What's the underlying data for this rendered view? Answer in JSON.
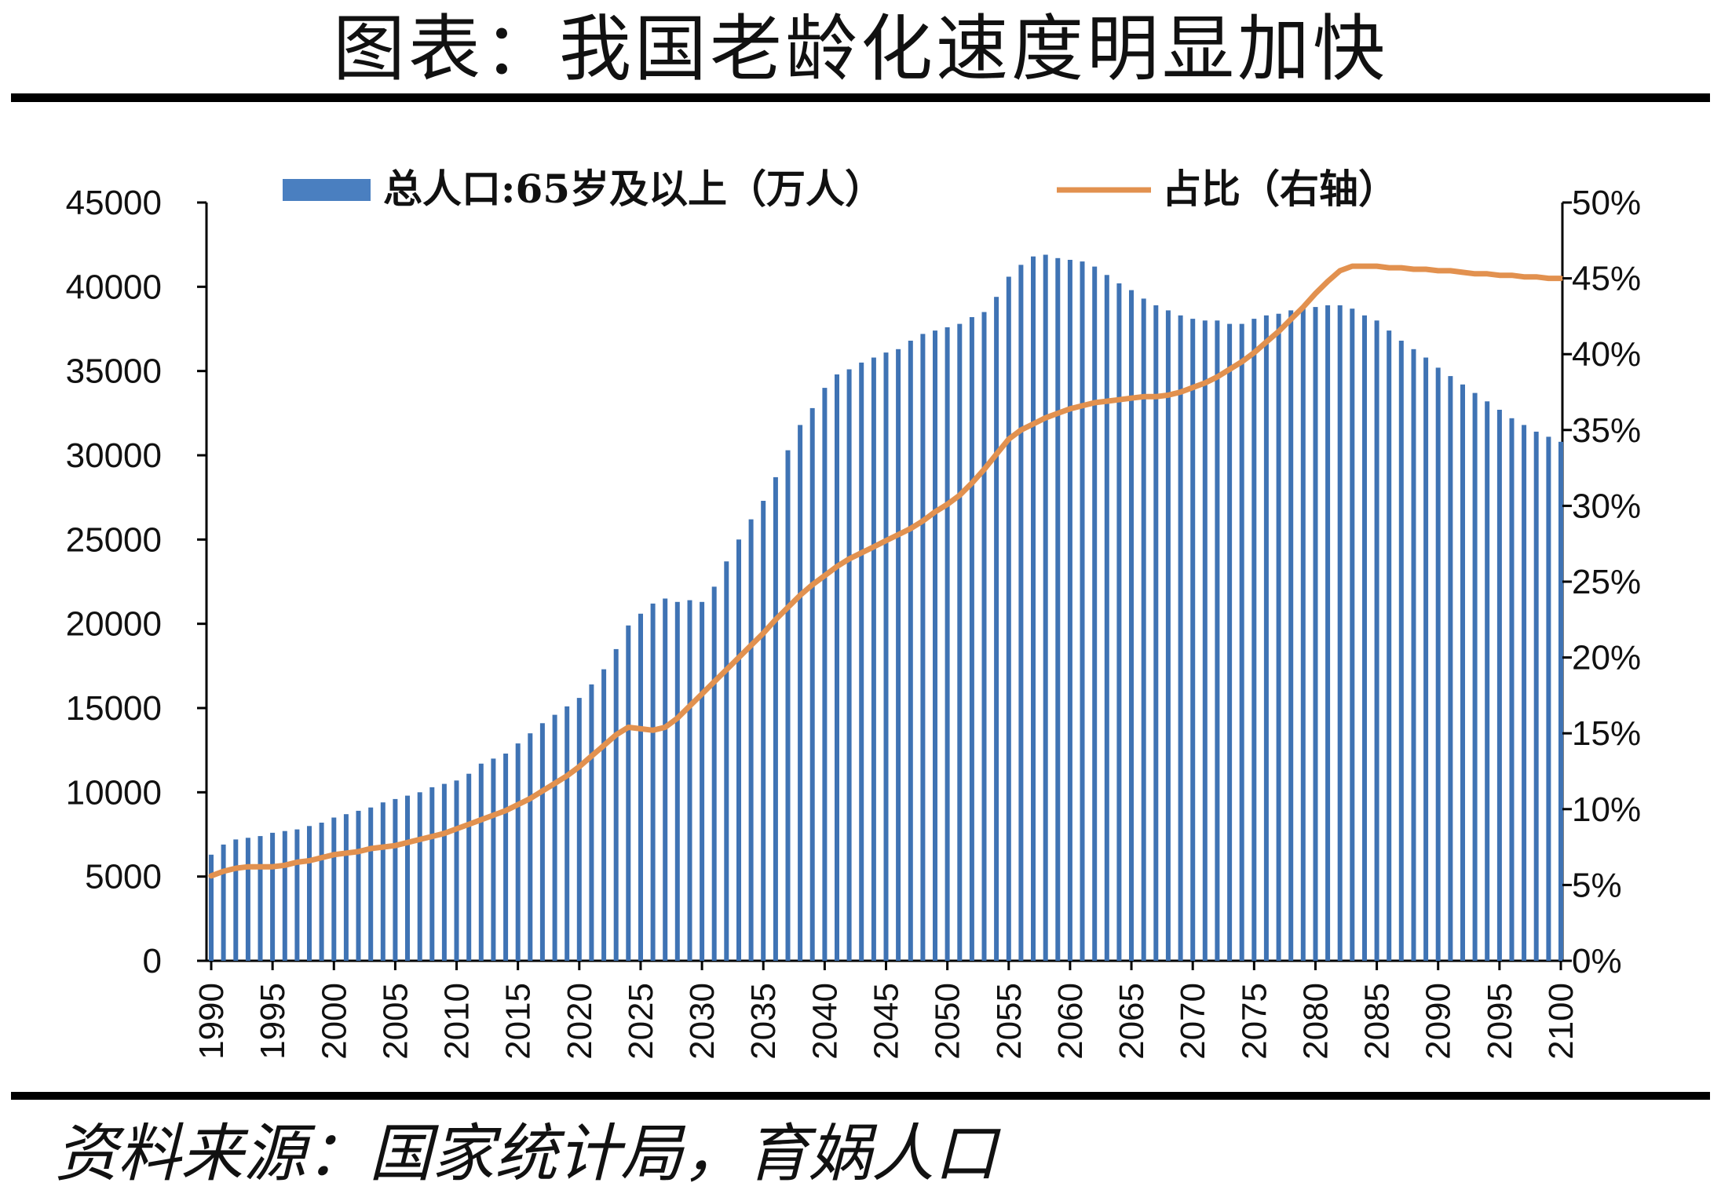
{
  "title": "图表：我国老龄化速度明显加快",
  "source": "资料来源：国家统计局，育娲人口",
  "colors": {
    "bar": "#3f73b4",
    "line": "#e2914f",
    "rule": "#000000"
  },
  "chart_data": {
    "type": "bar",
    "x_start": 1990,
    "x_end": 2100,
    "x_tick_labels": [
      "1990",
      "1995",
      "2000",
      "2005",
      "2010",
      "2015",
      "2020",
      "2025",
      "2030",
      "2035",
      "2040",
      "2045",
      "2050",
      "2055",
      "2060",
      "2065",
      "2070",
      "2075",
      "2080",
      "2085",
      "2090",
      "2095",
      "2100"
    ],
    "y_left": {
      "min": 0,
      "max": 45000,
      "ticks": [
        "0",
        "5000",
        "10000",
        "15000",
        "20000",
        "25000",
        "30000",
        "35000",
        "40000",
        "45000"
      ]
    },
    "y_right": {
      "min": 0,
      "max": 50,
      "ticks": [
        "0%",
        "5%",
        "10%",
        "15%",
        "20%",
        "25%",
        "30%",
        "35%",
        "40%",
        "45%",
        "50%"
      ]
    },
    "legend": {
      "position": "top",
      "bar_label": "总人口:65岁及以上（万人）",
      "line_label": "占比（右轴）"
    },
    "series": [
      {
        "name": "总人口:65岁及以上（万人）",
        "type": "bar",
        "values": [
          6300,
          6900,
          7200,
          7300,
          7400,
          7600,
          7700,
          7800,
          8000,
          8200,
          8500,
          8700,
          8900,
          9100,
          9400,
          9600,
          9800,
          10000,
          10300,
          10500,
          10700,
          11100,
          11700,
          12000,
          12300,
          12900,
          13500,
          14100,
          14600,
          15100,
          15600,
          16400,
          17300,
          18500,
          19900,
          20600,
          21200,
          21500,
          21300,
          21400,
          21300,
          22200,
          23700,
          25000,
          26200,
          27300,
          28700,
          30300,
          31800,
          32800,
          34000,
          34800,
          35100,
          35500,
          35800,
          36100,
          36300,
          36800,
          37200,
          37400,
          37600,
          37800,
          38200,
          38500,
          39400,
          40600,
          41300,
          41800,
          41900,
          41700,
          41600,
          41500,
          41200,
          40700,
          40200,
          39800,
          39300,
          38900,
          38600,
          38300,
          38100,
          38000,
          38000,
          37800,
          37800,
          38100,
          38300,
          38400,
          38600,
          38700,
          38800,
          38900,
          38900,
          38700,
          38300,
          38000,
          37400,
          36800,
          36300,
          35800,
          35200,
          34700,
          34200,
          33700,
          33200,
          32700,
          32200,
          31800,
          31400,
          31100,
          30800
        ]
      },
      {
        "name": "占比（右轴）",
        "type": "line",
        "values": [
          5.6,
          5.9,
          6.1,
          6.2,
          6.2,
          6.2,
          6.3,
          6.5,
          6.6,
          6.8,
          7.0,
          7.1,
          7.2,
          7.4,
          7.5,
          7.6,
          7.8,
          8.0,
          8.2,
          8.4,
          8.7,
          9.0,
          9.3,
          9.6,
          9.9,
          10.3,
          10.7,
          11.2,
          11.7,
          12.2,
          12.8,
          13.5,
          14.2,
          14.9,
          15.4,
          15.3,
          15.2,
          15.4,
          16.0,
          16.8,
          17.6,
          18.4,
          19.2,
          20.0,
          20.8,
          21.6,
          22.5,
          23.3,
          24.1,
          24.8,
          25.4,
          26.0,
          26.5,
          26.9,
          27.3,
          27.7,
          28.1,
          28.5,
          29.0,
          29.6,
          30.1,
          30.7,
          31.5,
          32.4,
          33.4,
          34.4,
          35.0,
          35.4,
          35.8,
          36.1,
          36.4,
          36.6,
          36.8,
          36.9,
          37.0,
          37.1,
          37.2,
          37.2,
          37.3,
          37.5,
          37.8,
          38.1,
          38.5,
          39.0,
          39.5,
          40.1,
          40.8,
          41.5,
          42.3,
          43.1,
          44.0,
          44.8,
          45.5,
          45.8,
          45.8,
          45.8,
          45.7,
          45.7,
          45.6,
          45.6,
          45.5,
          45.5,
          45.4,
          45.3,
          45.3,
          45.2,
          45.2,
          45.1,
          45.1,
          45.0,
          45.0
        ]
      }
    ]
  }
}
